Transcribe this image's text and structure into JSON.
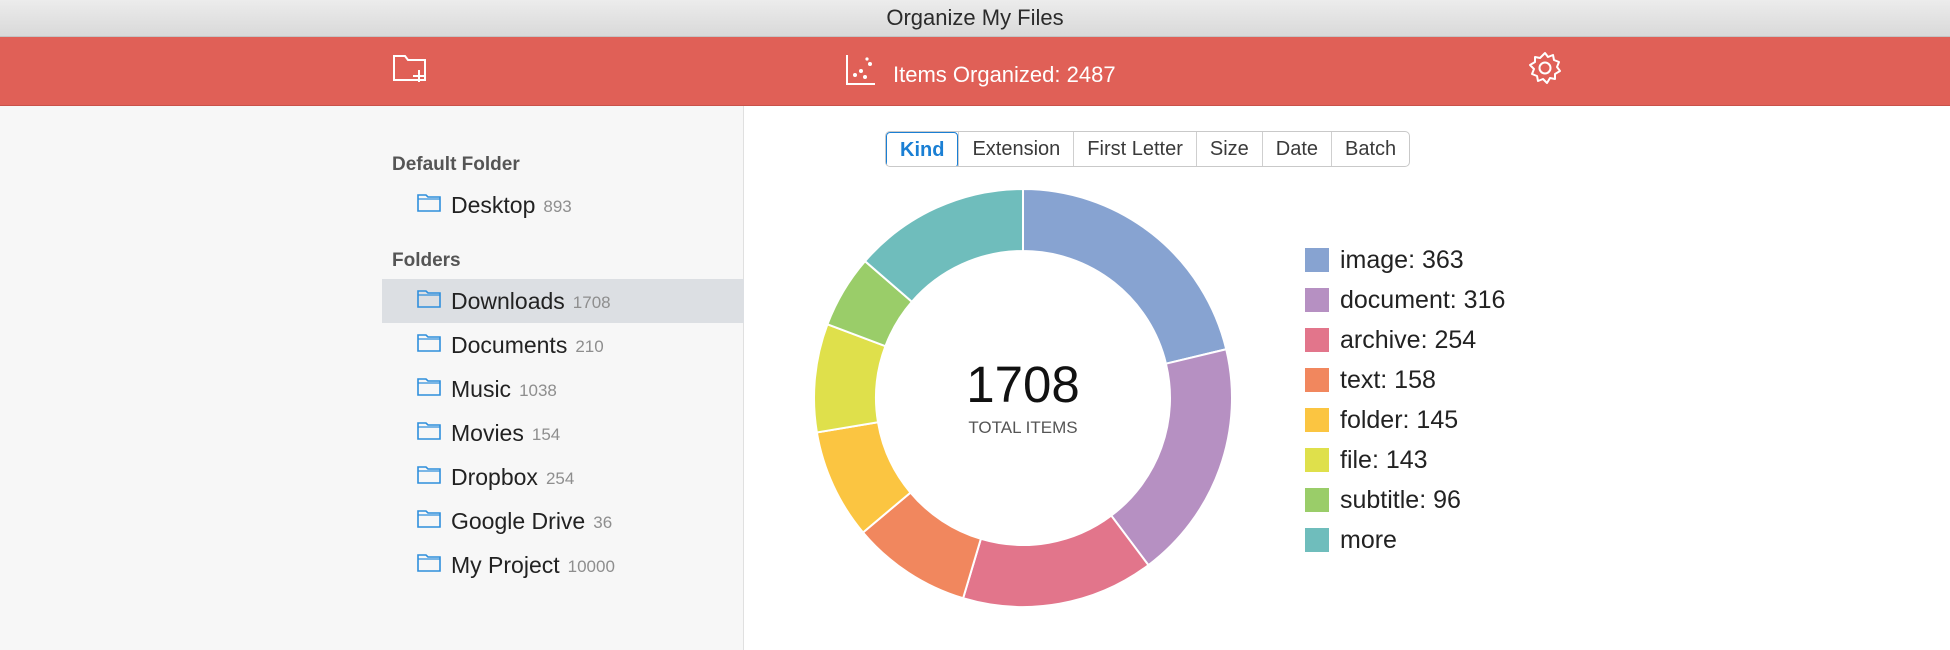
{
  "window": {
    "title": "Organize My Files"
  },
  "toolbar": {
    "add_folder_icon": "folder-plus-icon",
    "stats_icon": "scatter-chart-icon",
    "items_organized": "Items Organized: 2487",
    "settings_icon": "gear-icon",
    "background_color": "#e06057"
  },
  "sidebar": {
    "default_section": "Default Folder",
    "default_folder": {
      "name": "Desktop",
      "count": "893"
    },
    "folders_section": "Folders",
    "folders": [
      {
        "name": "Downloads",
        "count": "1708",
        "selected": true
      },
      {
        "name": "Documents",
        "count": "210"
      },
      {
        "name": "Music",
        "count": "1038"
      },
      {
        "name": "Movies",
        "count": "154"
      },
      {
        "name": "Dropbox",
        "count": "254"
      },
      {
        "name": "Google Drive",
        "count": "36"
      },
      {
        "name": "My Project",
        "count": "10000"
      }
    ]
  },
  "tabs": {
    "items": [
      "Kind",
      "Extension",
      "First Letter",
      "Size",
      "Date",
      "Batch"
    ],
    "active": "Kind"
  },
  "chart": {
    "center_value": "1708",
    "center_label": "TOTAL ITEMS"
  },
  "chart_data": {
    "type": "pie",
    "total": 1708,
    "labels": [
      "image: 363",
      "document: 316",
      "archive: 254",
      "text: 158",
      "folder: 145",
      "file: 143",
      "subtitle: 96",
      "more"
    ],
    "values": [
      363,
      316,
      254,
      158,
      145,
      143,
      96,
      233
    ],
    "colors": [
      "#87a3d1",
      "#b690c2",
      "#e2758b",
      "#f1875e",
      "#fbc541",
      "#dfe04b",
      "#9acd69",
      "#6fbdbc"
    ]
  }
}
